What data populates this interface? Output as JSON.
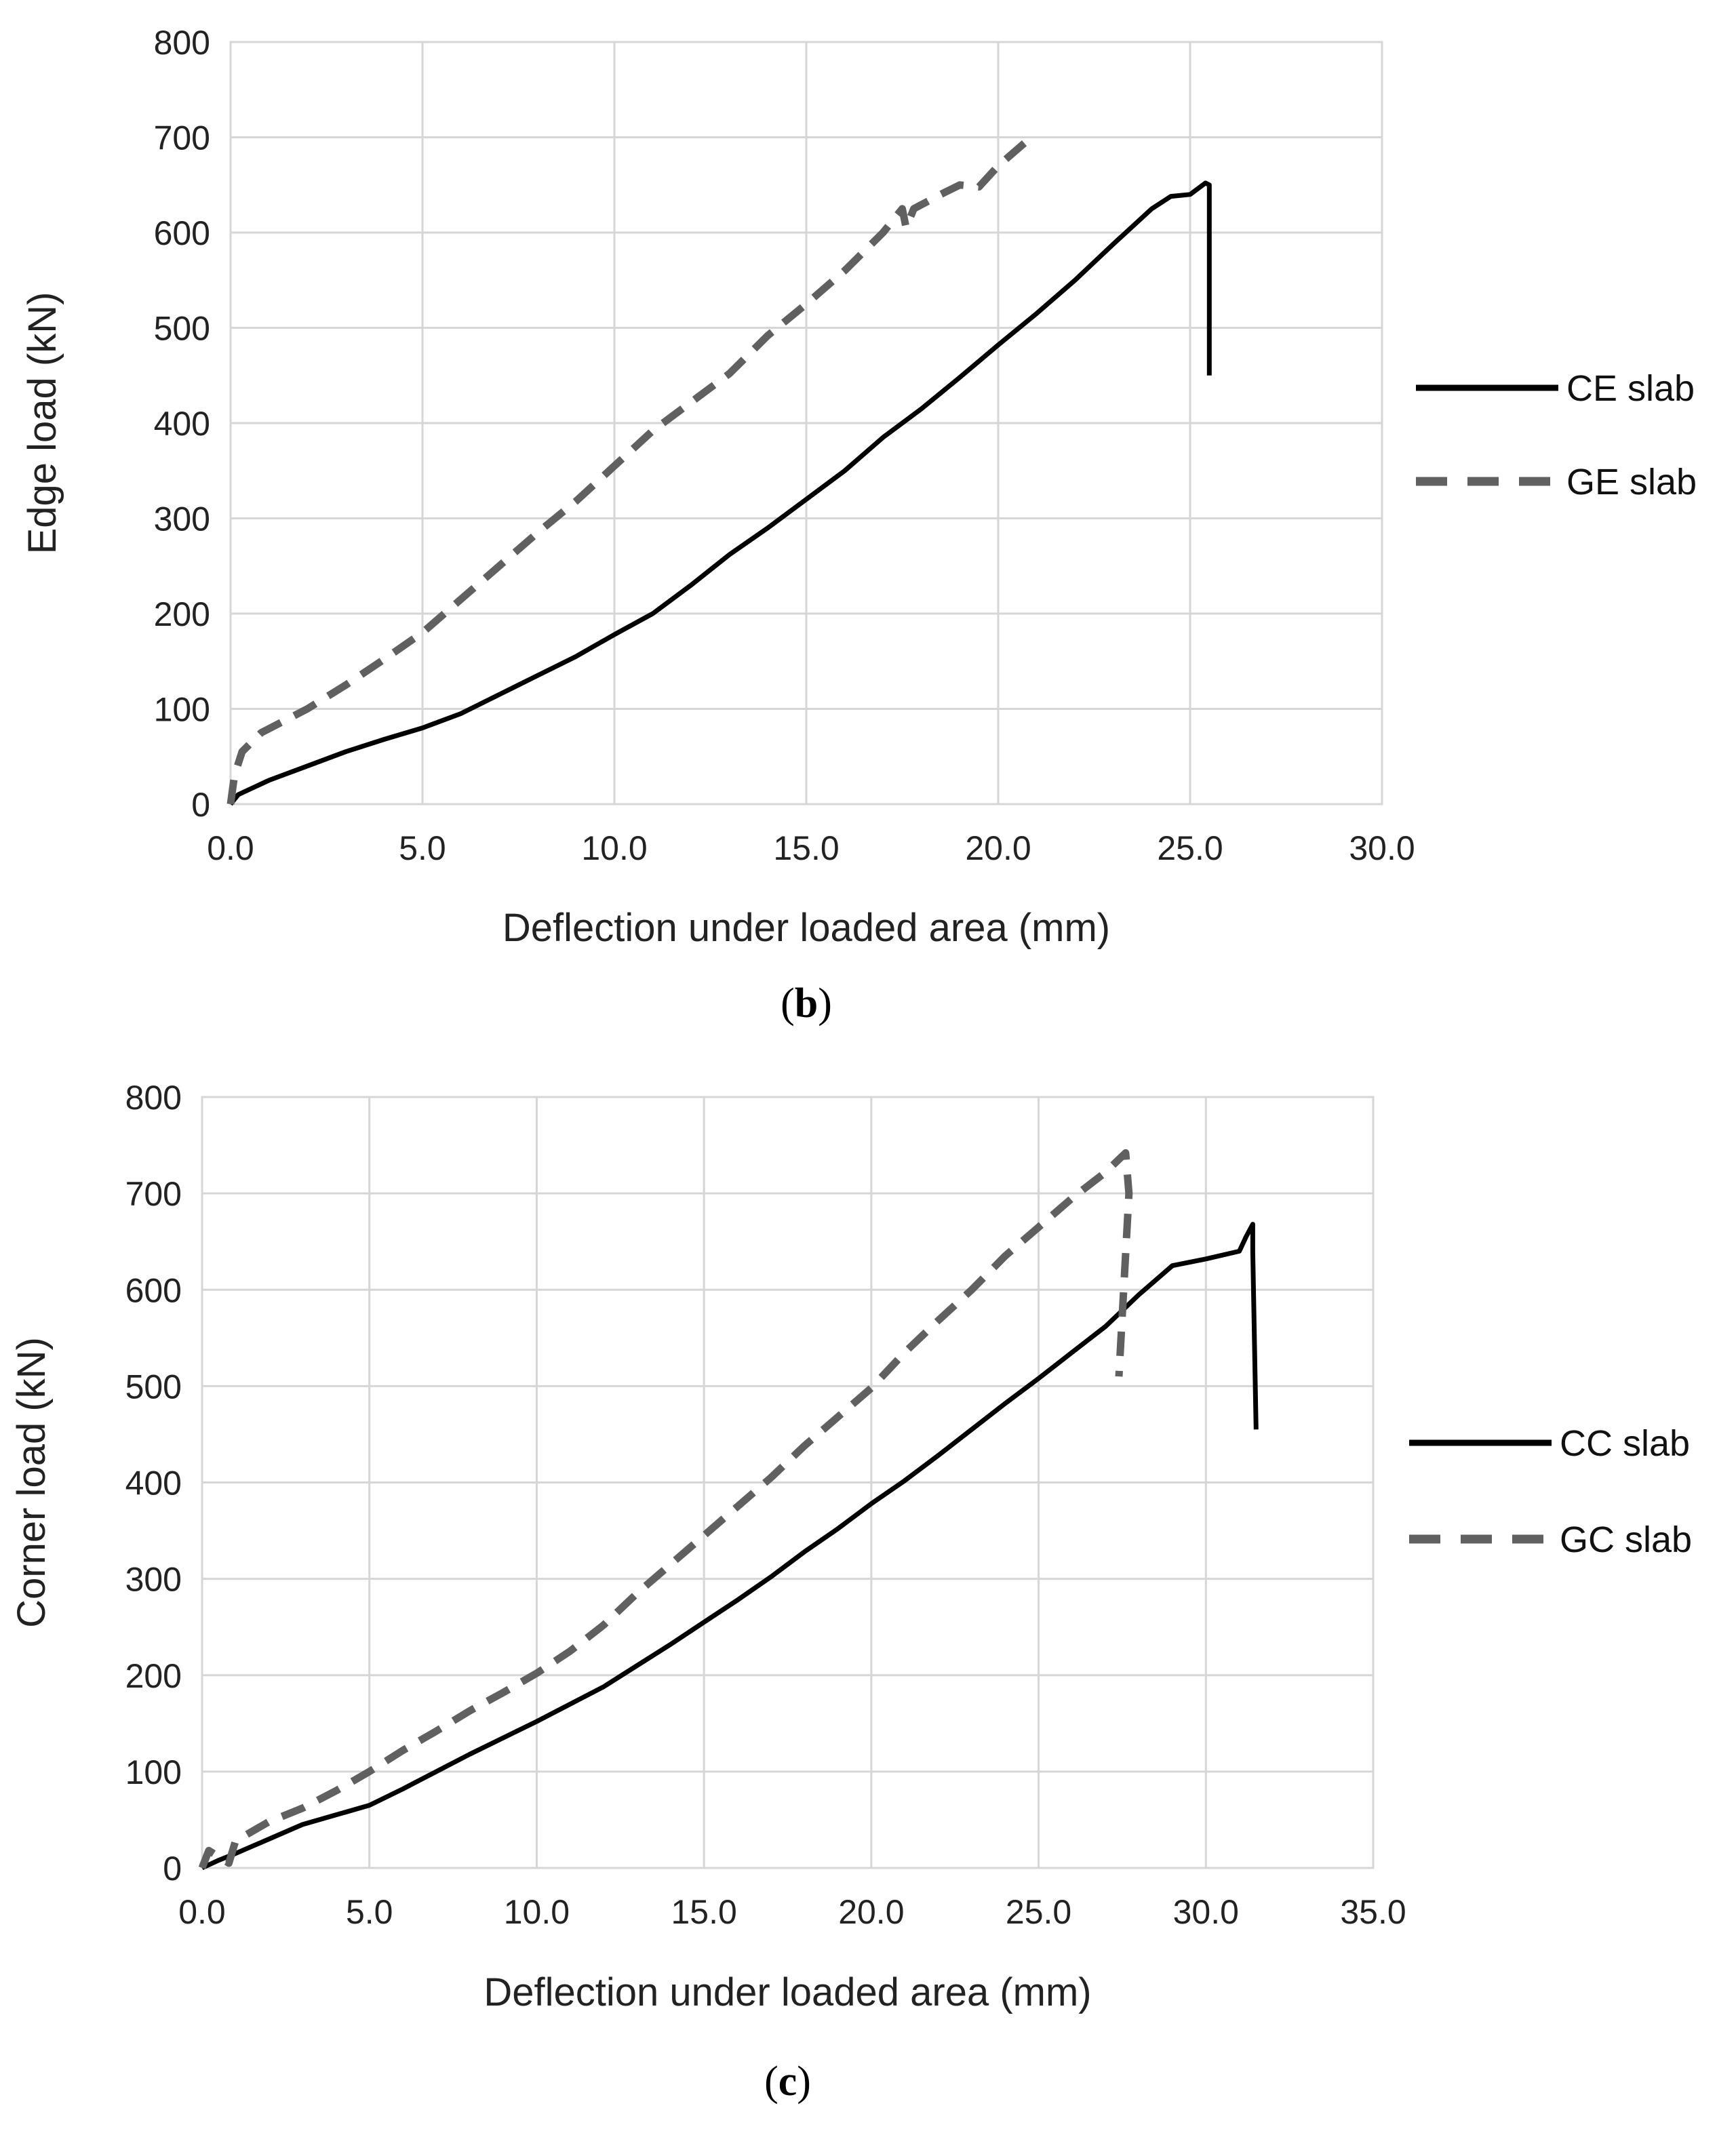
{
  "chart_data": [
    {
      "type": "line",
      "caption": {
        "open": "(",
        "letter": "b",
        "close": ")"
      },
      "xlabel": "Deflection under loaded area (mm)",
      "ylabel": "Edge load (kN)",
      "xlim": [
        0,
        30
      ],
      "ylim": [
        0,
        800
      ],
      "x_ticks": [
        0,
        5,
        10,
        15,
        20,
        25,
        30
      ],
      "x_tick_labels": [
        "0.0",
        "5.0",
        "10.0",
        "15.0",
        "20.0",
        "25.0",
        "30.0"
      ],
      "y_ticks": [
        0,
        100,
        200,
        300,
        400,
        500,
        600,
        700,
        800
      ],
      "y_tick_labels": [
        "0",
        "100",
        "200",
        "300",
        "400",
        "500",
        "600",
        "700",
        "800"
      ],
      "grid": true,
      "legend_position": "right",
      "series": [
        {
          "name": "CE slab",
          "style": "solid",
          "color": "#000000",
          "points": [
            [
              0.0,
              0
            ],
            [
              0.2,
              10
            ],
            [
              1.0,
              25
            ],
            [
              2.0,
              40
            ],
            [
              3.0,
              55
            ],
            [
              4.0,
              68
            ],
            [
              5.0,
              80
            ],
            [
              6.0,
              95
            ],
            [
              7.0,
              115
            ],
            [
              8.0,
              135
            ],
            [
              9.0,
              155
            ],
            [
              10.0,
              178
            ],
            [
              11.0,
              200
            ],
            [
              12.0,
              230
            ],
            [
              13.0,
              262
            ],
            [
              14.0,
              290
            ],
            [
              15.0,
              320
            ],
            [
              16.0,
              350
            ],
            [
              17.0,
              385
            ],
            [
              18.0,
              415
            ],
            [
              19.0,
              448
            ],
            [
              20.0,
              482
            ],
            [
              21.0,
              515
            ],
            [
              22.0,
              550
            ],
            [
              23.0,
              588
            ],
            [
              24.0,
              625
            ],
            [
              24.5,
              638
            ],
            [
              25.0,
              640
            ],
            [
              25.4,
              652
            ],
            [
              25.5,
              650
            ],
            [
              25.5,
              450
            ]
          ]
        },
        {
          "name": "GE slab",
          "style": "dashed",
          "color": "#606060",
          "points": [
            [
              0.0,
              0
            ],
            [
              0.1,
              30
            ],
            [
              0.3,
              55
            ],
            [
              0.8,
              75
            ],
            [
              2.0,
              100
            ],
            [
              3.0,
              125
            ],
            [
              4.0,
              152
            ],
            [
              5.0,
              180
            ],
            [
              6.0,
              215
            ],
            [
              7.0,
              250
            ],
            [
              8.0,
              285
            ],
            [
              9.0,
              318
            ],
            [
              10.0,
              355
            ],
            [
              11.0,
              392
            ],
            [
              12.0,
              422
            ],
            [
              13.0,
              452
            ],
            [
              14.0,
              492
            ],
            [
              15.0,
              525
            ],
            [
              16.0,
              560
            ],
            [
              17.0,
              600
            ],
            [
              17.5,
              625
            ],
            [
              17.6,
              605
            ],
            [
              17.8,
              625
            ],
            [
              18.5,
              640
            ],
            [
              19.0,
              650
            ],
            [
              19.5,
              648
            ],
            [
              20.0,
              670
            ],
            [
              20.8,
              698
            ]
          ]
        }
      ]
    },
    {
      "type": "line",
      "caption": {
        "open": "(",
        "letter": "c",
        "close": ")"
      },
      "xlabel": "Deflection under loaded area (mm)",
      "ylabel": "Corner load (kN)",
      "xlim": [
        0,
        35
      ],
      "ylim": [
        0,
        800
      ],
      "x_ticks": [
        0,
        5,
        10,
        15,
        20,
        25,
        30,
        35
      ],
      "x_tick_labels": [
        "0.0",
        "5.0",
        "10.0",
        "15.0",
        "20.0",
        "25.0",
        "30.0",
        "35.0"
      ],
      "y_ticks": [
        0,
        100,
        200,
        300,
        400,
        500,
        600,
        700,
        800
      ],
      "y_tick_labels": [
        "0",
        "100",
        "200",
        "300",
        "400",
        "500",
        "600",
        "700",
        "800"
      ],
      "grid": true,
      "legend_position": "right",
      "series": [
        {
          "name": "CC slab",
          "style": "solid",
          "color": "#000000",
          "points": [
            [
              0.0,
              0
            ],
            [
              0.5,
              8
            ],
            [
              1.0,
              15
            ],
            [
              2.0,
              30
            ],
            [
              3.0,
              45
            ],
            [
              4.0,
              55
            ],
            [
              5.0,
              65
            ],
            [
              6.0,
              82
            ],
            [
              7.0,
              100
            ],
            [
              8.0,
              118
            ],
            [
              9.0,
              135
            ],
            [
              10.0,
              152
            ],
            [
              11.0,
              170
            ],
            [
              12.0,
              188
            ],
            [
              13.0,
              210
            ],
            [
              14.0,
              232
            ],
            [
              15.0,
              255
            ],
            [
              16.0,
              278
            ],
            [
              17.0,
              302
            ],
            [
              18.0,
              328
            ],
            [
              19.0,
              352
            ],
            [
              20.0,
              378
            ],
            [
              21.0,
              402
            ],
            [
              22.0,
              428
            ],
            [
              23.0,
              455
            ],
            [
              24.0,
              482
            ],
            [
              25.0,
              508
            ],
            [
              26.0,
              535
            ],
            [
              27.0,
              562
            ],
            [
              28.0,
              595
            ],
            [
              29.0,
              625
            ],
            [
              30.0,
              632
            ],
            [
              31.0,
              640
            ],
            [
              31.2,
              655
            ],
            [
              31.4,
              668
            ],
            [
              31.4,
              640
            ],
            [
              31.5,
              455
            ]
          ]
        },
        {
          "name": "GC slab",
          "style": "dashed",
          "color": "#606060",
          "points": [
            [
              0.0,
              0
            ],
            [
              0.2,
              18
            ],
            [
              0.8,
              5
            ],
            [
              1.0,
              28
            ],
            [
              2.0,
              48
            ],
            [
              3.0,
              62
            ],
            [
              4.0,
              80
            ],
            [
              5.0,
              100
            ],
            [
              6.0,
              122
            ],
            [
              7.0,
              142
            ],
            [
              8.0,
              163
            ],
            [
              9.0,
              182
            ],
            [
              10.0,
              202
            ],
            [
              11.0,
              225
            ],
            [
              12.0,
              252
            ],
            [
              13.0,
              285
            ],
            [
              14.0,
              315
            ],
            [
              15.0,
              345
            ],
            [
              16.0,
              375
            ],
            [
              17.0,
              405
            ],
            [
              18.0,
              438
            ],
            [
              19.0,
              468
            ],
            [
              20.0,
              498
            ],
            [
              21.0,
              535
            ],
            [
              22.0,
              568
            ],
            [
              23.0,
              600
            ],
            [
              24.0,
              635
            ],
            [
              25.0,
              665
            ],
            [
              26.0,
              695
            ],
            [
              27.0,
              722
            ],
            [
              27.6,
              742
            ],
            [
              27.7,
              700
            ],
            [
              27.4,
              510
            ]
          ]
        }
      ]
    }
  ]
}
